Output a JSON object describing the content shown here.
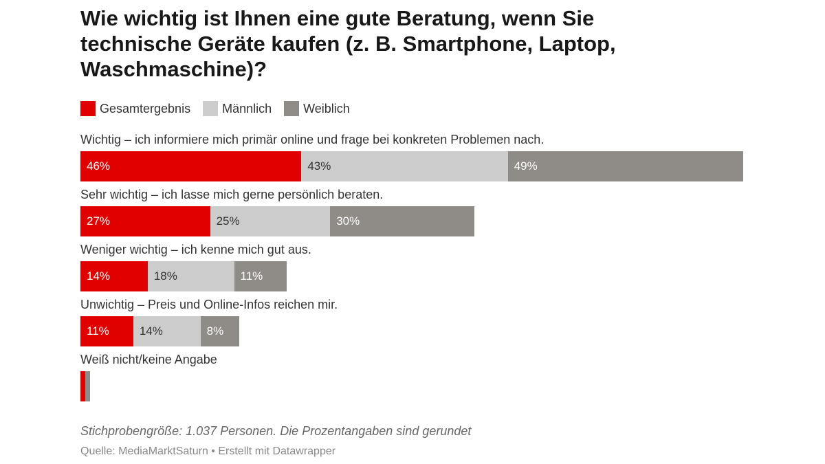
{
  "chart_data": {
    "type": "bar",
    "stacked": true,
    "orientation": "horizontal",
    "title": "Wie wichtig ist Ihnen eine gute Beratung, wenn Sie technische Geräte kaufen (z. B. Smartphone, Laptop, Waschmaschine)?",
    "legend_position": "top-left",
    "categories": [
      "Wichtig – ich informiere mich primär online und frage bei konkreten Problemen nach.",
      "Sehr wichtig – ich lasse mich gerne persönlich beraten.",
      "Weniger wichtig – ich kenne mich gut aus.",
      "Unwichtig – Preis und Online-Infos reichen mir.",
      "Weiß nicht/keine Angabe"
    ],
    "series": [
      {
        "name": "Gesamtergebnis",
        "color": "#e00000",
        "text_color": "#ffffff",
        "values": [
          46,
          27,
          14,
          11,
          1
        ],
        "labels": [
          "46%",
          "27%",
          "14%",
          "11%",
          ""
        ]
      },
      {
        "name": "Männlich",
        "color": "#cccccc",
        "text_color": "#333333",
        "values": [
          43,
          25,
          18,
          14,
          0
        ],
        "labels": [
          "43%",
          "25%",
          "18%",
          "14%",
          ""
        ]
      },
      {
        "name": "Weiblich",
        "color": "#8f8b87",
        "text_color": "#ffffff",
        "values": [
          49,
          30,
          11,
          8,
          1
        ],
        "labels": [
          "49%",
          "30%",
          "11%",
          "8%",
          ""
        ]
      }
    ],
    "grid": false
  },
  "notes": "Stichprobengröße: 1.037 Personen. Die Prozentangaben sind gerundet",
  "source": "Quelle: MediaMarktSaturn • Erstellt mit Datawrapper"
}
